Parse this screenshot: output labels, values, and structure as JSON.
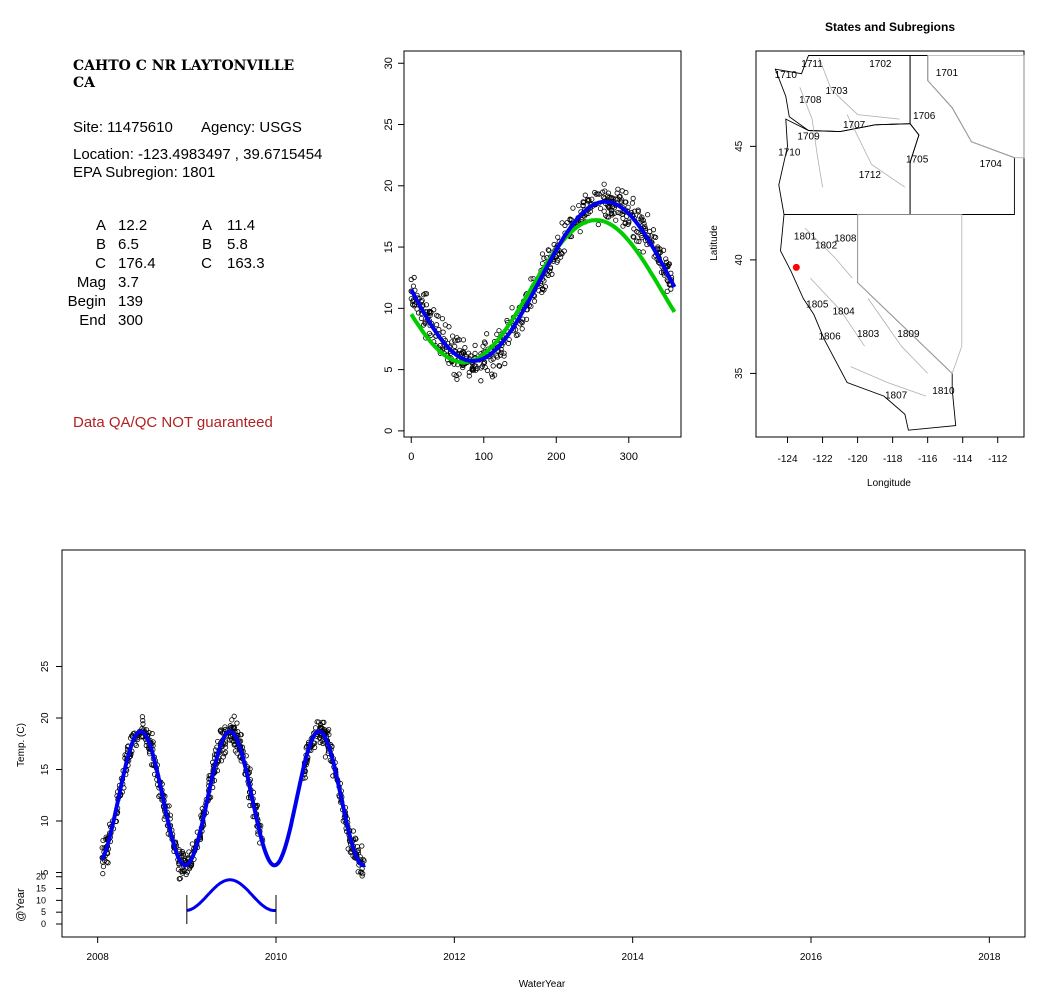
{
  "info": {
    "site_name_line1": "CAHTO C NR LAYTONVILLE",
    "site_name_line2": "CA",
    "site": "Site: 11475610",
    "agency": "Agency: USGS",
    "location": "Location: -123.4983497 , 39.6715454",
    "epa_subregion": "EPA Subregion: 1801",
    "params": [
      {
        "label": "A",
        "v1": "12.2",
        "label2": "A",
        "v2": "11.4"
      },
      {
        "label": "B",
        "v1": "6.5",
        "label2": "B",
        "v2": "5.8"
      },
      {
        "label": "C",
        "v1": "176.4",
        "label2": "C",
        "v2": "163.3"
      },
      {
        "label": "Mag",
        "v1": "3.7"
      },
      {
        "label": "Begin",
        "v1": "139"
      },
      {
        "label": "End",
        "v1": "300"
      }
    ],
    "warning": "Data QA/QC NOT guaranteed"
  },
  "chart_data": [
    {
      "type": "scatter",
      "title": "",
      "xlabel": "",
      "ylabel": "",
      "xlim": [
        -10,
        372
      ],
      "ylim": [
        -0.5,
        31
      ],
      "x_ticks": [
        0,
        100,
        200,
        300
      ],
      "y_ticks": [
        0,
        5,
        10,
        15,
        20,
        25,
        30
      ],
      "series": [
        {
          "type": "scatter",
          "color": "#000000",
          "marker": "open-circle"
        },
        {
          "type": "line",
          "color": "#00cc00"
        },
        {
          "type": "line",
          "color": "#0000ee"
        }
      ],
      "curve_params": {
        "green": {
          "A": 11.4,
          "B": 5.8,
          "C": 163.3
        },
        "blue": {
          "A": 12.2,
          "B": 6.5,
          "C": 176.4
        }
      }
    },
    {
      "type": "map",
      "title": "States and Subregions",
      "xlabel": "Longitude",
      "ylabel": "Latitude",
      "xlim": [
        -125.8,
        -110.5
      ],
      "ylim": [
        32.2,
        49.2
      ],
      "x_ticks": [
        -124,
        -122,
        -120,
        -118,
        -116,
        -114,
        -112
      ],
      "y_ticks": [
        35,
        40,
        45
      ],
      "regions": [
        {
          "label": "1711",
          "lon": -122.6,
          "lat": 48.5
        },
        {
          "label": "1710",
          "lon": -124.1,
          "lat": 48.0
        },
        {
          "label": "1702",
          "lon": -118.7,
          "lat": 48.5
        },
        {
          "label": "1701",
          "lon": -114.9,
          "lat": 48.1
        },
        {
          "label": "1703",
          "lon": -121.2,
          "lat": 47.3
        },
        {
          "label": "1708",
          "lon": -122.7,
          "lat": 46.9
        },
        {
          "label": "1706",
          "lon": -116.2,
          "lat": 46.2
        },
        {
          "label": "1707",
          "lon": -120.2,
          "lat": 45.8
        },
        {
          "label": "1709",
          "lon": -122.8,
          "lat": 45.3
        },
        {
          "label": "1710",
          "lon": -123.9,
          "lat": 44.6
        },
        {
          "label": "1705",
          "lon": -116.6,
          "lat": 44.3
        },
        {
          "label": "1704",
          "lon": -112.4,
          "lat": 44.1
        },
        {
          "label": "1712",
          "lon": -119.3,
          "lat": 43.6
        },
        {
          "label": "1801",
          "lon": -123.0,
          "lat": 40.9
        },
        {
          "label": "1808",
          "lon": -120.7,
          "lat": 40.8
        },
        {
          "label": "1802",
          "lon": -121.8,
          "lat": 40.5
        },
        {
          "label": "1805",
          "lon": -122.3,
          "lat": 37.9
        },
        {
          "label": "1804",
          "lon": -120.8,
          "lat": 37.6
        },
        {
          "label": "1806",
          "lon": -121.6,
          "lat": 36.5
        },
        {
          "label": "1803",
          "lon": -119.4,
          "lat": 36.6
        },
        {
          "label": "1809",
          "lon": -117.1,
          "lat": 36.6
        },
        {
          "label": "1807",
          "lon": -117.8,
          "lat": 33.9
        },
        {
          "label": "1810",
          "lon": -115.1,
          "lat": 34.1
        }
      ],
      "site_marker": {
        "lon": -123.4983497,
        "lat": 39.6715454,
        "color": "#ff0000"
      }
    },
    {
      "type": "scatter",
      "title": "",
      "xlabel": "WaterYear",
      "ylabel": "Temp. (C)",
      "ylabel2": "@Year",
      "xlim": [
        2007.6,
        2018.4
      ],
      "x_ticks": [
        2008,
        2010,
        2012,
        2014,
        2016,
        2018
      ],
      "y_ticks": [
        5,
        10,
        15,
        20,
        25
      ],
      "y2_ticks": [
        0,
        5,
        10,
        15,
        20
      ],
      "series": [
        {
          "type": "scatter",
          "color": "#000000",
          "marker": "open-circle"
        },
        {
          "type": "line",
          "color": "#0000ee"
        }
      ],
      "blue_fit": {
        "A": 12.2,
        "B": 6.5,
        "C": 176.4
      },
      "data_range": [
        2008.05,
        2011.0
      ]
    }
  ]
}
